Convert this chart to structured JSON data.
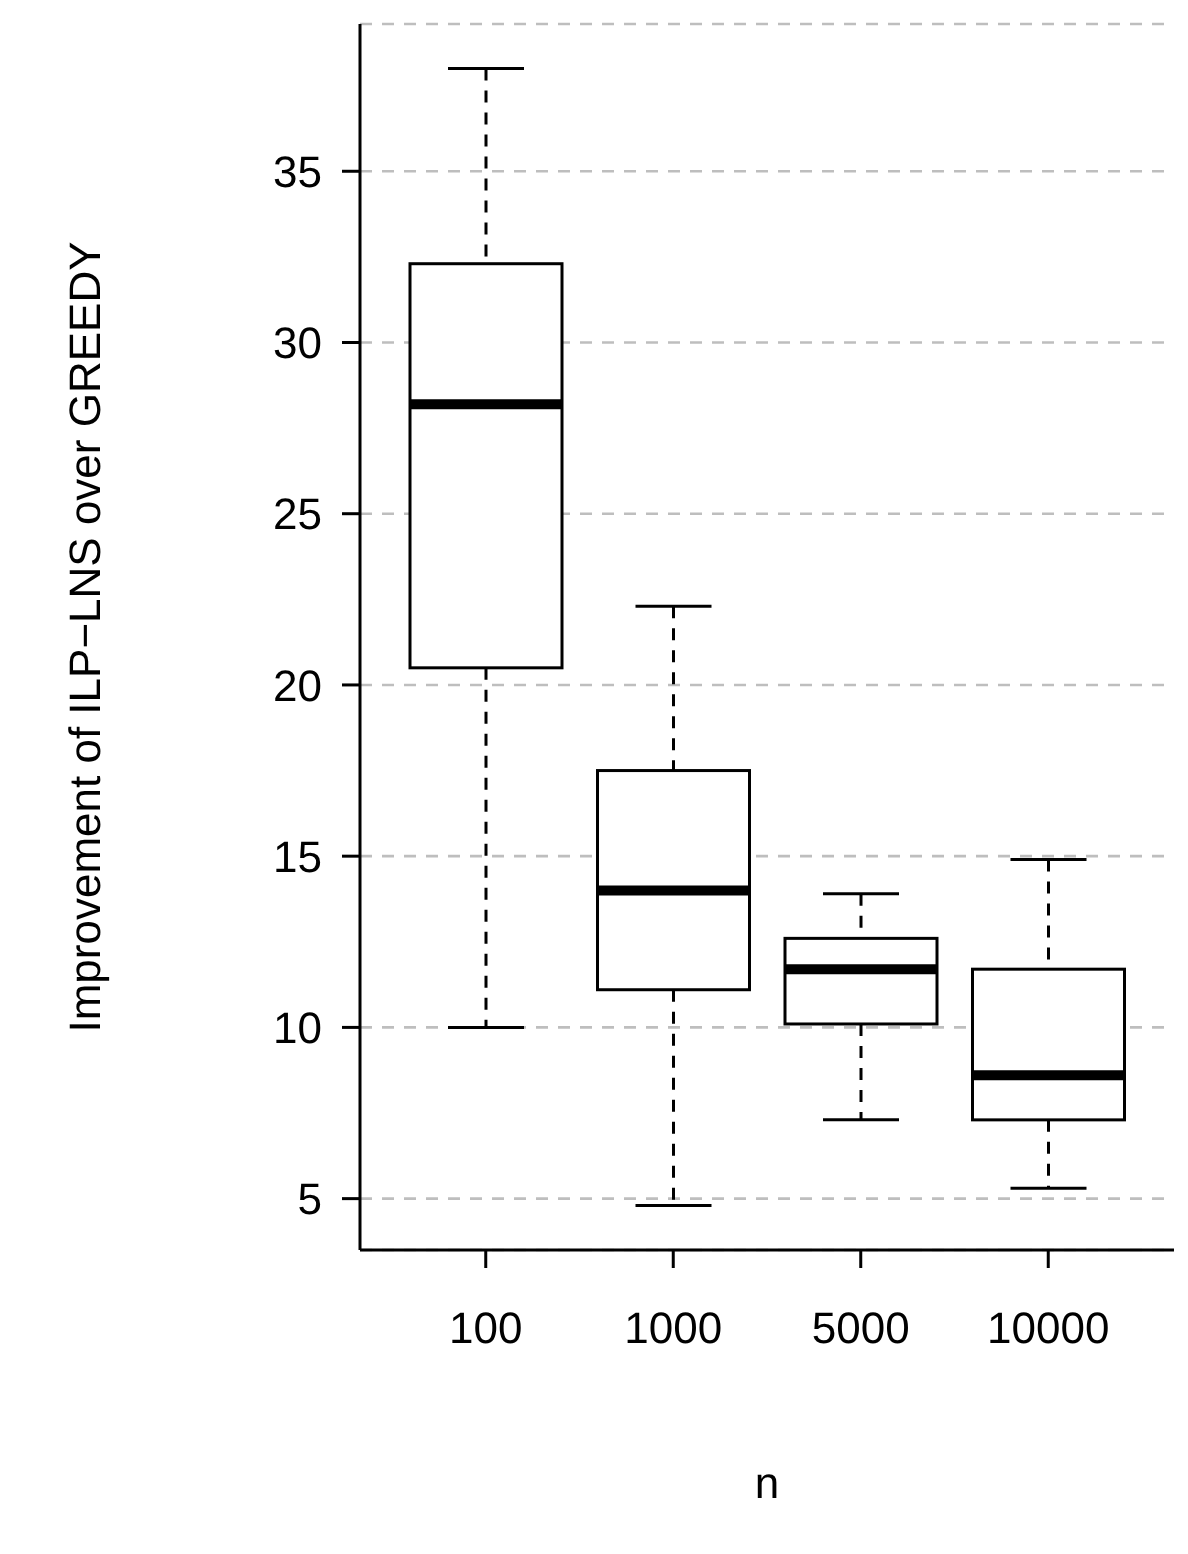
{
  "chart_data": {
    "type": "box",
    "xlabel": "n",
    "ylabel": "Improvement of ILP−LNS over GREEDY",
    "categories": [
      "100",
      "1000",
      "5000",
      "10000"
    ],
    "boxes": [
      {
        "low": 10.0,
        "q1": 20.5,
        "median": 28.2,
        "q3": 32.3,
        "high": 38.0
      },
      {
        "low": 4.8,
        "q1": 11.1,
        "median": 14.0,
        "q3": 17.5,
        "high": 22.3
      },
      {
        "low": 7.3,
        "q1": 10.1,
        "median": 11.7,
        "q3": 12.6,
        "high": 13.9
      },
      {
        "low": 5.3,
        "q1": 7.3,
        "median": 8.6,
        "q3": 11.7,
        "high": 14.9
      }
    ],
    "ylim": [
      3.5,
      39.3
    ],
    "yticks": [
      5,
      10,
      15,
      20,
      25,
      30,
      35
    ],
    "grid": "y"
  }
}
